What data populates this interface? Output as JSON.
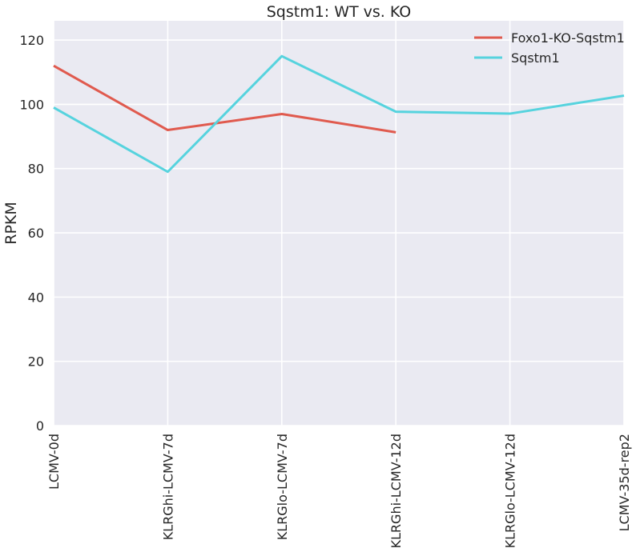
{
  "chart_data": {
    "type": "line",
    "title": "Sqstm1: WT vs. KO",
    "xlabel": "",
    "ylabel": "RPKM",
    "categories": [
      "LCMV-0d",
      "KLRGhi-LCMV-7d",
      "KLRGlo-LCMV-7d",
      "KLRGhi-LCMV-12d",
      "KLRGlo-LCMV-12d",
      "LCMV-35d-rep2"
    ],
    "ylim": [
      0,
      126
    ],
    "yticks": [
      0,
      20,
      40,
      60,
      80,
      100,
      120
    ],
    "grid": true,
    "legend_position": "top-right",
    "series": [
      {
        "name": "Foxo1-KO-Sqstm1",
        "color": "#e05a4e",
        "values": [
          112,
          92,
          97,
          91.3,
          null,
          null
        ]
      },
      {
        "name": "Sqstm1",
        "color": "#56d3de",
        "values": [
          99,
          79,
          115,
          97.7,
          97.1,
          102.7
        ]
      }
    ],
    "plot_background": "#eaeaf2",
    "grid_color": "#ffffff"
  }
}
